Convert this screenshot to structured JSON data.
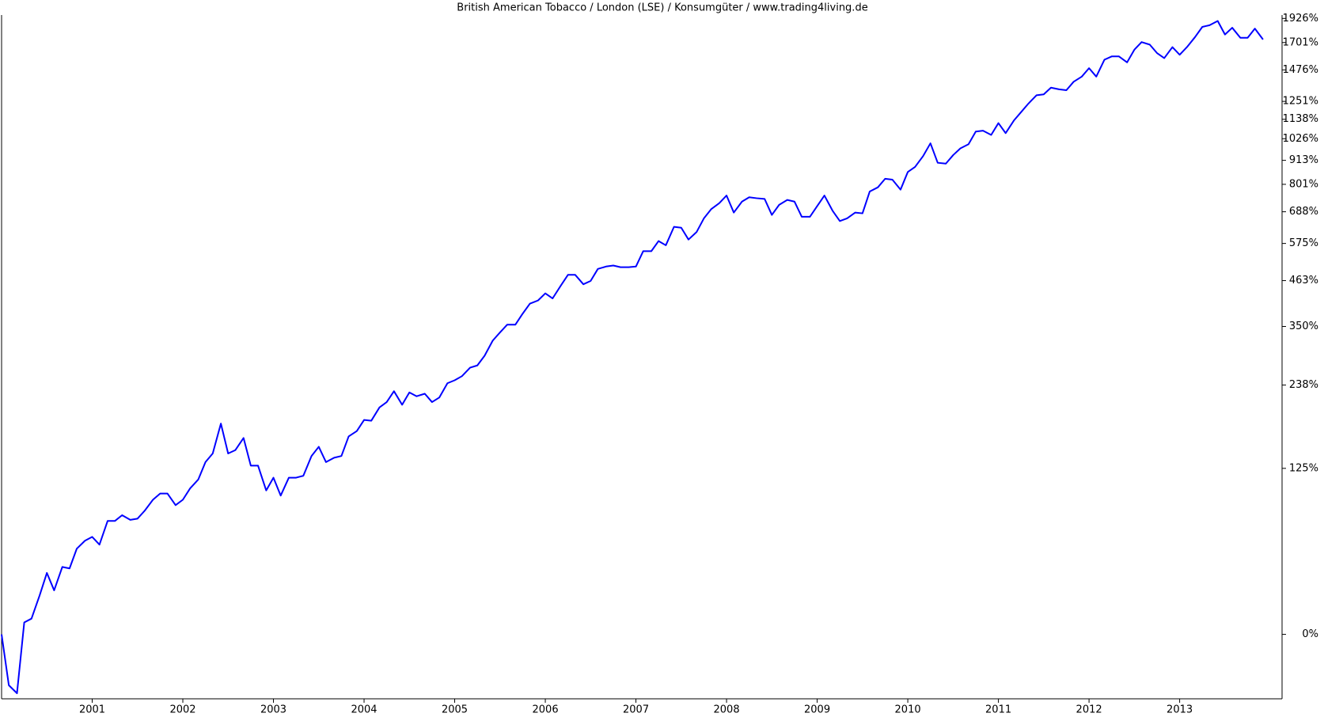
{
  "chart_data": {
    "type": "line",
    "title": "British American Tobacco / London (LSE) / Konsumgüter / www.trading4living.de",
    "color": "#0000ff",
    "yscale": "log",
    "grid": false,
    "xlim": [
      2000,
      2014.13
    ],
    "xticks": [
      2001,
      2002,
      2003,
      2004,
      2005,
      2006,
      2007,
      2008,
      2009,
      2010,
      2011,
      2012,
      2013
    ],
    "ylim": [
      -27,
      1960
    ],
    "yticks": [
      {
        "value": 0,
        "label": "0%"
      },
      {
        "value": 125,
        "label": "125%"
      },
      {
        "value": 238,
        "label": "238%"
      },
      {
        "value": 350,
        "label": "350%"
      },
      {
        "value": 463,
        "label": "463%"
      },
      {
        "value": 575,
        "label": "575%"
      },
      {
        "value": 688,
        "label": "688%"
      },
      {
        "value": 801,
        "label": "801%"
      },
      {
        "value": 913,
        "label": "913%"
      },
      {
        "value": 1026,
        "label": "1026%"
      },
      {
        "value": 1138,
        "label": "1138%"
      },
      {
        "value": 1251,
        "label": "1251%"
      },
      {
        "value": 1476,
        "label": "1476%"
      },
      {
        "value": 1701,
        "label": "1701%"
      },
      {
        "value": 1926,
        "label": "1926%"
      }
    ],
    "x": [
      2000,
      2000.08,
      2000.17,
      2000.25,
      2000.33,
      2000.42,
      2000.5,
      2000.58,
      2000.67,
      2000.75,
      2000.83,
      2000.92,
      2001,
      2001.08,
      2001.17,
      2001.25,
      2001.33,
      2001.42,
      2001.5,
      2001.58,
      2001.67,
      2001.75,
      2001.83,
      2001.92,
      2002,
      2002.08,
      2002.17,
      2002.25,
      2002.33,
      2002.42,
      2002.5,
      2002.58,
      2002.67,
      2002.75,
      2002.83,
      2002.92,
      2003,
      2003.08,
      2003.17,
      2003.25,
      2003.33,
      2003.42,
      2003.5,
      2003.58,
      2003.67,
      2003.75,
      2003.83,
      2003.92,
      2004,
      2004.08,
      2004.17,
      2004.25,
      2004.33,
      2004.42,
      2004.5,
      2004.58,
      2004.67,
      2004.75,
      2004.83,
      2004.92,
      2005,
      2005.08,
      2005.17,
      2005.25,
      2005.33,
      2005.42,
      2005.5,
      2005.58,
      2005.67,
      2005.75,
      2005.83,
      2005.92,
      2006,
      2006.08,
      2006.17,
      2006.25,
      2006.33,
      2006.42,
      2006.5,
      2006.58,
      2006.67,
      2006.75,
      2006.83,
      2006.92,
      2007,
      2007.08,
      2007.17,
      2007.25,
      2007.33,
      2007.42,
      2007.5,
      2007.58,
      2007.67,
      2007.75,
      2007.83,
      2007.92,
      2008,
      2008.08,
      2008.17,
      2008.25,
      2008.33,
      2008.42,
      2008.5,
      2008.58,
      2008.67,
      2008.75,
      2008.83,
      2008.92,
      2009,
      2009.08,
      2009.17,
      2009.25,
      2009.33,
      2009.42,
      2009.5,
      2009.58,
      2009.67,
      2009.75,
      2009.83,
      2009.92,
      2010,
      2010.08,
      2010.17,
      2010.25,
      2010.33,
      2010.42,
      2010.5,
      2010.58,
      2010.67,
      2010.75,
      2010.83,
      2010.92,
      2011,
      2011.08,
      2011.17,
      2011.25,
      2011.33,
      2011.42,
      2011.5,
      2011.58,
      2011.67,
      2011.75,
      2011.83,
      2011.92,
      2012,
      2012.08,
      2012.17,
      2012.25,
      2012.33,
      2012.42,
      2012.5,
      2012.58,
      2012.67,
      2012.75,
      2012.83,
      2012.92,
      2013,
      2013.08,
      2013.17,
      2013.25,
      2013.33,
      2013.42,
      2013.5,
      2013.58,
      2013.67,
      2013.75,
      2013.83,
      2013.92
    ],
    "values": [
      0,
      -22,
      -25,
      6,
      8,
      21,
      35,
      24,
      39,
      38,
      52,
      58,
      61,
      55,
      74,
      74,
      79,
      75,
      76,
      83,
      93,
      99,
      99,
      88,
      93,
      104,
      113,
      132,
      142,
      180,
      142,
      146,
      161,
      128,
      128,
      102,
      115,
      97,
      115,
      115,
      117,
      139,
      150,
      132,
      137,
      139,
      163,
      170,
      185,
      184,
      203,
      211,
      228,
      207,
      226,
      220,
      224,
      211,
      218,
      241,
      246,
      253,
      268,
      272,
      290,
      320,
      337,
      354,
      354,
      379,
      403,
      411,
      429,
      416,
      449,
      479,
      479,
      453,
      462,
      496,
      503,
      506,
      501,
      501,
      503,
      550,
      550,
      583,
      569,
      632,
      629,
      588,
      614,
      663,
      698,
      722,
      753,
      685,
      728,
      746,
      742,
      739,
      676,
      715,
      735,
      728,
      669,
      669,
      710,
      753,
      692,
      653,
      663,
      685,
      682,
      770,
      788,
      826,
      822,
      778,
      857,
      881,
      935,
      1001,
      901,
      897,
      939,
      974,
      996,
      1066,
      1071,
      1047,
      1115,
      1057,
      1130,
      1182,
      1236,
      1292,
      1298,
      1345,
      1333,
      1327,
      1387,
      1425,
      1489,
      1425,
      1556,
      1583,
      1583,
      1535,
      1639,
      1705,
      1683,
      1611,
      1569,
      1661,
      1597,
      1661,
      1750,
      1844,
      1860,
      1901,
      1773,
      1836,
      1743,
      1743,
      1828,
      1728
    ]
  }
}
